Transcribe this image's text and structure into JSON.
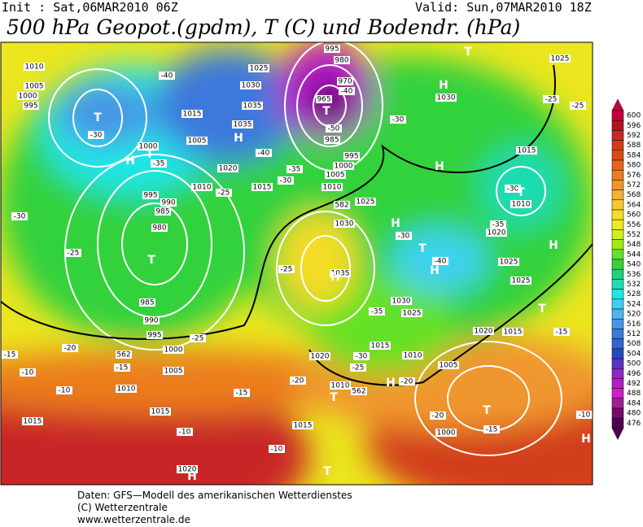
{
  "header": {
    "init": "Init : Sat,06MAR2010 06Z",
    "valid": "Valid: Sun,07MAR2010 18Z",
    "title": "500 hPa Geopot.(gpdm), T (C) und Bodendr. (hPa)"
  },
  "legend": {
    "levels": [
      600,
      596,
      592,
      588,
      584,
      580,
      576,
      572,
      568,
      564,
      560,
      556,
      552,
      548,
      544,
      540,
      536,
      532,
      528,
      524,
      520,
      516,
      512,
      508,
      504,
      500,
      496,
      492,
      488,
      484,
      480,
      476
    ],
    "colors": [
      "#c8003c",
      "#b4141e",
      "#c82828",
      "#d23c1e",
      "#dc4b14",
      "#e6641e",
      "#eb7d1e",
      "#f0962d",
      "#f5af32",
      "#f5c832",
      "#f5dc28",
      "#ebeb1e",
      "#d2f01e",
      "#a0eb14",
      "#64e128",
      "#32d23c",
      "#1ed278",
      "#1edcb4",
      "#1ee6e6",
      "#3cd2f0",
      "#50b4f0",
      "#4696e6",
      "#3c78dc",
      "#3264d2",
      "#2846be",
      "#5a32be",
      "#8c28c8",
      "#b41ec8",
      "#d21ec8",
      "#a01e96",
      "#780a6e",
      "#500050"
    ]
  },
  "map_labels": [
    "1010",
    "1005",
    "1000",
    "995",
    "T",
    "-30",
    "-40",
    "1025",
    "1030",
    "1035",
    "1015",
    "1035",
    "H",
    "1005",
    "-40",
    "1020",
    "1015",
    "1000",
    "H",
    "T",
    "-35",
    "1010",
    "-25",
    "995",
    "990",
    "985",
    "980",
    "T",
    "-30",
    "-25",
    "985",
    "990",
    "995",
    "1000",
    "-25",
    "-20",
    "-15",
    "-10",
    "-15",
    "1005",
    "-10",
    "1010",
    "-15",
    "1015",
    "1015",
    "-10",
    "-10",
    "1015",
    "1020",
    "H",
    "T",
    "995",
    "980",
    "970",
    "-40",
    "965",
    "T",
    "-50",
    "985",
    "995",
    "1000",
    "1005",
    "1010",
    "-35",
    "-30",
    "-30",
    "582",
    "1025",
    "1030",
    "H",
    "-30",
    "-25",
    "1035",
    "H",
    "T",
    "-40",
    "H",
    "1030",
    "1025",
    "-35",
    "1015",
    "-30",
    "1010",
    "1020",
    "-25",
    "H",
    "-20",
    "562",
    "1010",
    "T",
    "-20",
    "H",
    "1030",
    "T",
    "1025",
    "-25",
    "-25",
    "H",
    "1015",
    "-30",
    "T",
    "1010",
    "-35",
    "1020",
    "H",
    "1025",
    "1025",
    "T",
    "1020",
    "1015",
    "-15",
    "1005",
    "-20",
    "T",
    "-15",
    "1000",
    "-10",
    "H",
    "562"
  ],
  "footer": [
    "Daten: GFS—Modell des amerikanischen Wetterdienstes",
    "(C) Wetterzentrale",
    "www.wetterzentrale.de"
  ]
}
